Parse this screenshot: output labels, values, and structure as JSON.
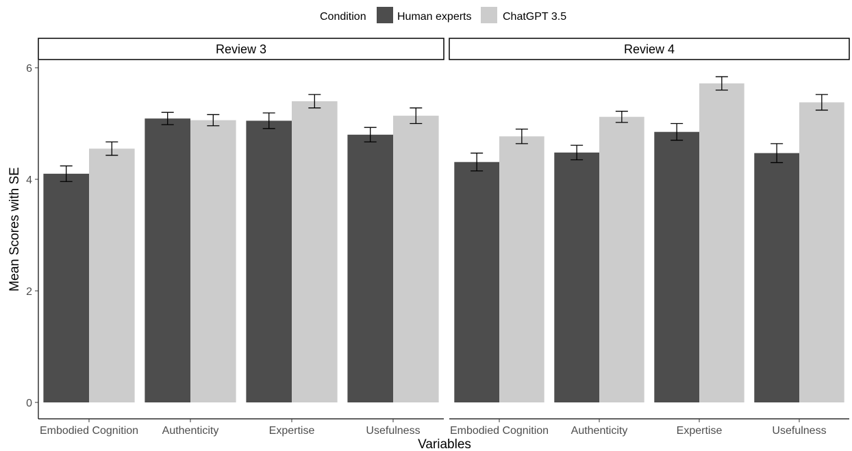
{
  "legend": {
    "title": "Condition",
    "entries": [
      {
        "label": "Human experts",
        "color": "#4d4d4d"
      },
      {
        "label": "ChatGPT 3.5",
        "color": "#cccccc"
      }
    ]
  },
  "axes": {
    "xlabel": "Variables",
    "ylabel": "Mean Scores with SE"
  },
  "chart_data": {
    "type": "bar",
    "grid": false,
    "legend_position": "top",
    "ylim": [
      0,
      6.15
    ],
    "yticks": [
      0,
      2,
      4,
      6
    ],
    "categories": [
      "Embodied Cognition",
      "Authenticity",
      "Expertise",
      "Usefulness"
    ],
    "panels": [
      {
        "title": "Review 3",
        "series": [
          {
            "name": "Human experts",
            "values": [
              4.1,
              5.09,
              5.05,
              4.8
            ],
            "se": [
              0.14,
              0.11,
              0.14,
              0.13
            ]
          },
          {
            "name": "ChatGPT 3.5",
            "values": [
              4.55,
              5.06,
              5.4,
              5.14
            ],
            "se": [
              0.12,
              0.1,
              0.12,
              0.14
            ]
          }
        ]
      },
      {
        "title": "Review 4",
        "series": [
          {
            "name": "Human experts",
            "values": [
              4.31,
              4.48,
              4.85,
              4.47
            ],
            "se": [
              0.16,
              0.13,
              0.15,
              0.17
            ]
          },
          {
            "name": "ChatGPT 3.5",
            "values": [
              4.77,
              5.12,
              5.72,
              5.38
            ],
            "se": [
              0.13,
              0.1,
              0.12,
              0.14
            ]
          }
        ]
      }
    ]
  }
}
